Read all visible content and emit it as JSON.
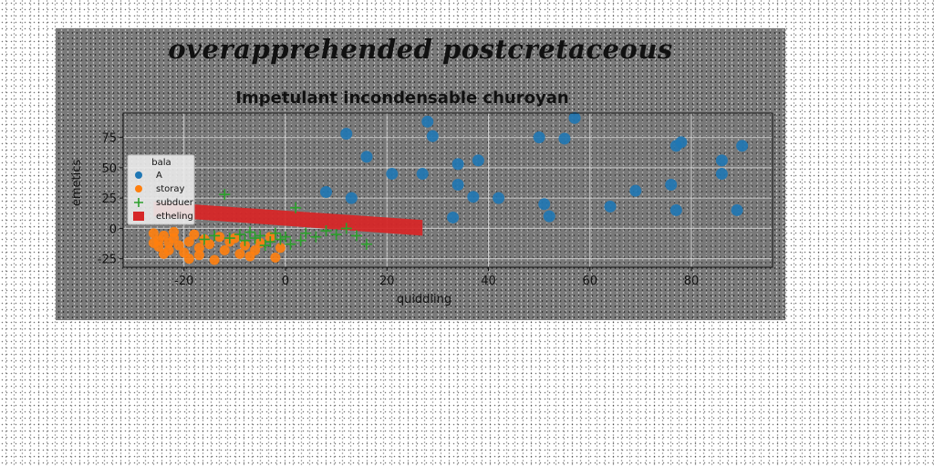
{
  "figure": {
    "suptitle": "overapprehended postcretaceous"
  },
  "chart_data": {
    "type": "scatter",
    "title": "Impetulant incondensable churoyan",
    "xlabel": "quiddling",
    "ylabel": "emetics",
    "xlim": [
      -32,
      96
    ],
    "ylim": [
      -32,
      95
    ],
    "xticks": [
      -20,
      0,
      20,
      40,
      60,
      80
    ],
    "yticks": [
      -25,
      0,
      25,
      50,
      75
    ],
    "grid": true,
    "legend": {
      "title": "bala",
      "placement": "upper-left"
    },
    "colors": {
      "A": "#1f77b4",
      "storay": "#ff7f0e",
      "subduer": "#2ca02c",
      "etheling": "#d62728"
    },
    "series": [
      {
        "name": "A",
        "marker": "circle",
        "points": [
          [
            12,
            78
          ],
          [
            16,
            59
          ],
          [
            21,
            45
          ],
          [
            27,
            45
          ],
          [
            28,
            88
          ],
          [
            29,
            76
          ],
          [
            33,
            9
          ],
          [
            34,
            36
          ],
          [
            34,
            53
          ],
          [
            37,
            26
          ],
          [
            38,
            56
          ],
          [
            42,
            25
          ],
          [
            50,
            75
          ],
          [
            51,
            20
          ],
          [
            52,
            10
          ],
          [
            55,
            74
          ],
          [
            57,
            91
          ],
          [
            64,
            18
          ],
          [
            69,
            31
          ],
          [
            76,
            36
          ],
          [
            77,
            15
          ],
          [
            77,
            68
          ],
          [
            78,
            71
          ],
          [
            86,
            56
          ],
          [
            86,
            45
          ],
          [
            89,
            15
          ],
          [
            90,
            68
          ],
          [
            8,
            30
          ],
          [
            13,
            25
          ]
        ]
      },
      {
        "name": "storay",
        "marker": "circle",
        "points": [
          [
            -26,
            -4
          ],
          [
            -25,
            -10
          ],
          [
            -25,
            -15
          ],
          [
            -24,
            -6
          ],
          [
            -23,
            -12
          ],
          [
            -23,
            -18
          ],
          [
            -22,
            -8
          ],
          [
            -21,
            -14
          ],
          [
            -20,
            -20
          ],
          [
            -19,
            -11
          ],
          [
            -18,
            -5
          ],
          [
            -17,
            -16
          ],
          [
            -17,
            -22
          ],
          [
            -16,
            -9
          ],
          [
            -15,
            -13
          ],
          [
            -14,
            -26
          ],
          [
            -13,
            -7
          ],
          [
            -12,
            -18
          ],
          [
            -11,
            -11
          ],
          [
            -9,
            -21
          ],
          [
            -8,
            -14
          ],
          [
            -7,
            -23
          ],
          [
            -5,
            -12
          ],
          [
            -3,
            -7
          ],
          [
            -2,
            -24
          ],
          [
            -1,
            -16
          ],
          [
            -26,
            -12
          ],
          [
            -22,
            -3
          ],
          [
            -19,
            -25
          ],
          [
            -24,
            -21
          ],
          [
            -10,
            -8
          ],
          [
            -6,
            -18
          ]
        ]
      },
      {
        "name": "subduer",
        "marker": "plus",
        "points": [
          [
            -12,
            28
          ],
          [
            -14,
            -6
          ],
          [
            -11,
            -8
          ],
          [
            -9,
            -5
          ],
          [
            -8,
            -10
          ],
          [
            -7,
            -3
          ],
          [
            -6,
            -8
          ],
          [
            -5,
            -6
          ],
          [
            -3,
            -11
          ],
          [
            -2,
            -4
          ],
          [
            -1,
            -9
          ],
          [
            0,
            -7
          ],
          [
            1,
            -13
          ],
          [
            2,
            17
          ],
          [
            3,
            -10
          ],
          [
            4,
            -4
          ],
          [
            6,
            -7
          ],
          [
            8,
            -2
          ],
          [
            10,
            -5
          ],
          [
            12,
            0
          ],
          [
            14,
            -6
          ],
          [
            16,
            -13
          ],
          [
            -16,
            -9
          ],
          [
            -4,
            -14
          ]
        ]
      },
      {
        "name": "etheling",
        "marker": "band",
        "band": {
          "x0": -26,
          "x1": 27,
          "top0": 22,
          "top1": 7,
          "bottom0": 10,
          "bottom1": -6
        }
      }
    ]
  }
}
